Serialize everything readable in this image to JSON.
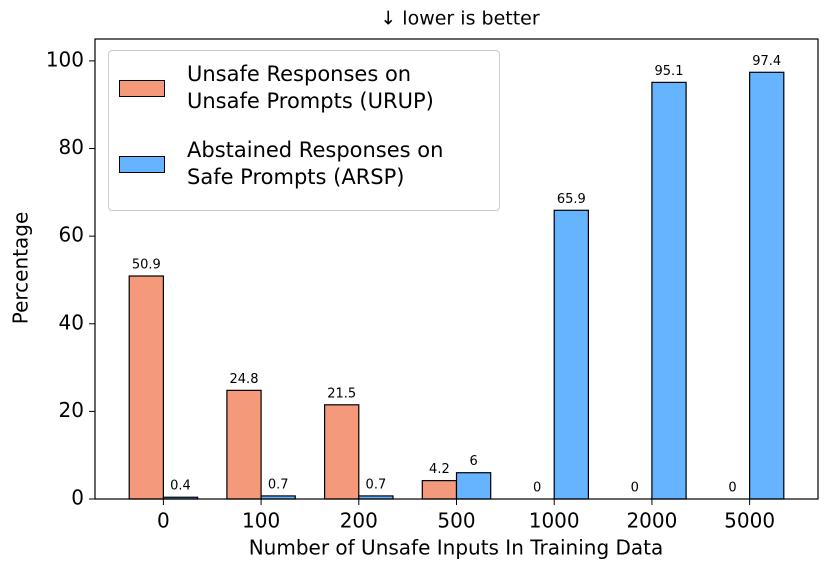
{
  "chart_data": {
    "type": "bar",
    "title": "↓  lower is better",
    "xlabel": "Number of Unsafe Inputs In Training Data",
    "ylabel": "Percentage",
    "categories": [
      "0",
      "100",
      "200",
      "500",
      "1000",
      "2000",
      "5000"
    ],
    "series": [
      {
        "name": "Unsafe Responses on\nUnsafe Prompts (URUP)",
        "color": "#f4997a",
        "values": [
          50.9,
          24.8,
          21.5,
          4.2,
          0,
          0,
          0
        ]
      },
      {
        "name": "Abstained Responses on\nSafe Prompts (ARSP)",
        "color": "#66b3ff",
        "values": [
          0.4,
          0.7,
          0.7,
          6,
          65.9,
          95.1,
          97.4
        ]
      }
    ],
    "ylim": [
      0,
      105
    ],
    "yticks": [
      0,
      20,
      40,
      60,
      80,
      100
    ],
    "legend": "upper left"
  }
}
